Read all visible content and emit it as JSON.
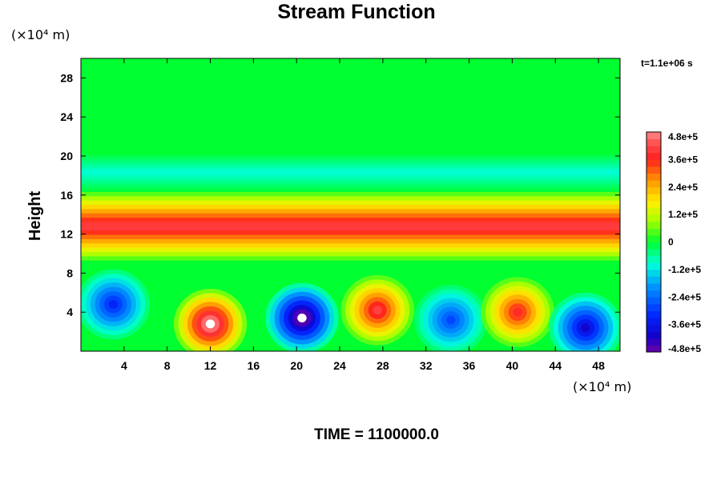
{
  "chart_data": {
    "type": "heatmap",
    "title": "Stream Function",
    "ylabel": "Height",
    "y_unit_label": "(×10⁴ m)",
    "x_unit_label": "(×10⁴ m)",
    "time_label": "t=1.1e+06 s",
    "footer": "TIME = 1100000.0",
    "xlim": [
      0,
      50
    ],
    "ylim": [
      0,
      30
    ],
    "x_ticks": [
      4,
      8,
      12,
      16,
      20,
      24,
      28,
      32,
      36,
      40,
      44,
      48
    ],
    "y_ticks": [
      4,
      8,
      12,
      16,
      20,
      24,
      28
    ],
    "colorbar": {
      "min": -480000,
      "max": 480000,
      "labels": [
        "4.8e+5",
        "3.6e+5",
        "2.4e+5",
        "1.2e+5",
        "0",
        "-1.2e+5",
        "-2.4e+5",
        "-3.6e+5",
        "-4.8e+5"
      ],
      "label_values": [
        480000,
        360000,
        240000,
        120000,
        0,
        -120000,
        -240000,
        -360000,
        -480000
      ],
      "levels": 32
    },
    "features": [
      {
        "kind": "band",
        "y_center": 12.8,
        "y_width": 2.6,
        "value": 400000
      },
      {
        "kind": "band",
        "y_center": 18.3,
        "y_width": 1.4,
        "value": -90000
      },
      {
        "kind": "cell",
        "x": 3.0,
        "y": 4.8,
        "value": -330000
      },
      {
        "kind": "cell",
        "x": 12.0,
        "y": 2.8,
        "value": 520000
      },
      {
        "kind": "cell",
        "x": 20.5,
        "y": 3.4,
        "value": -520000
      },
      {
        "kind": "cell",
        "x": 27.5,
        "y": 4.2,
        "value": 410000
      },
      {
        "kind": "cell",
        "x": 34.3,
        "y": 3.2,
        "value": -280000
      },
      {
        "kind": "cell",
        "x": 40.5,
        "y": 4.0,
        "value": 380000
      },
      {
        "kind": "cell",
        "x": 46.8,
        "y": 2.4,
        "value": -400000
      }
    ]
  },
  "colors": {
    "background": "#ffffff",
    "zero_level": "#00ff30"
  }
}
